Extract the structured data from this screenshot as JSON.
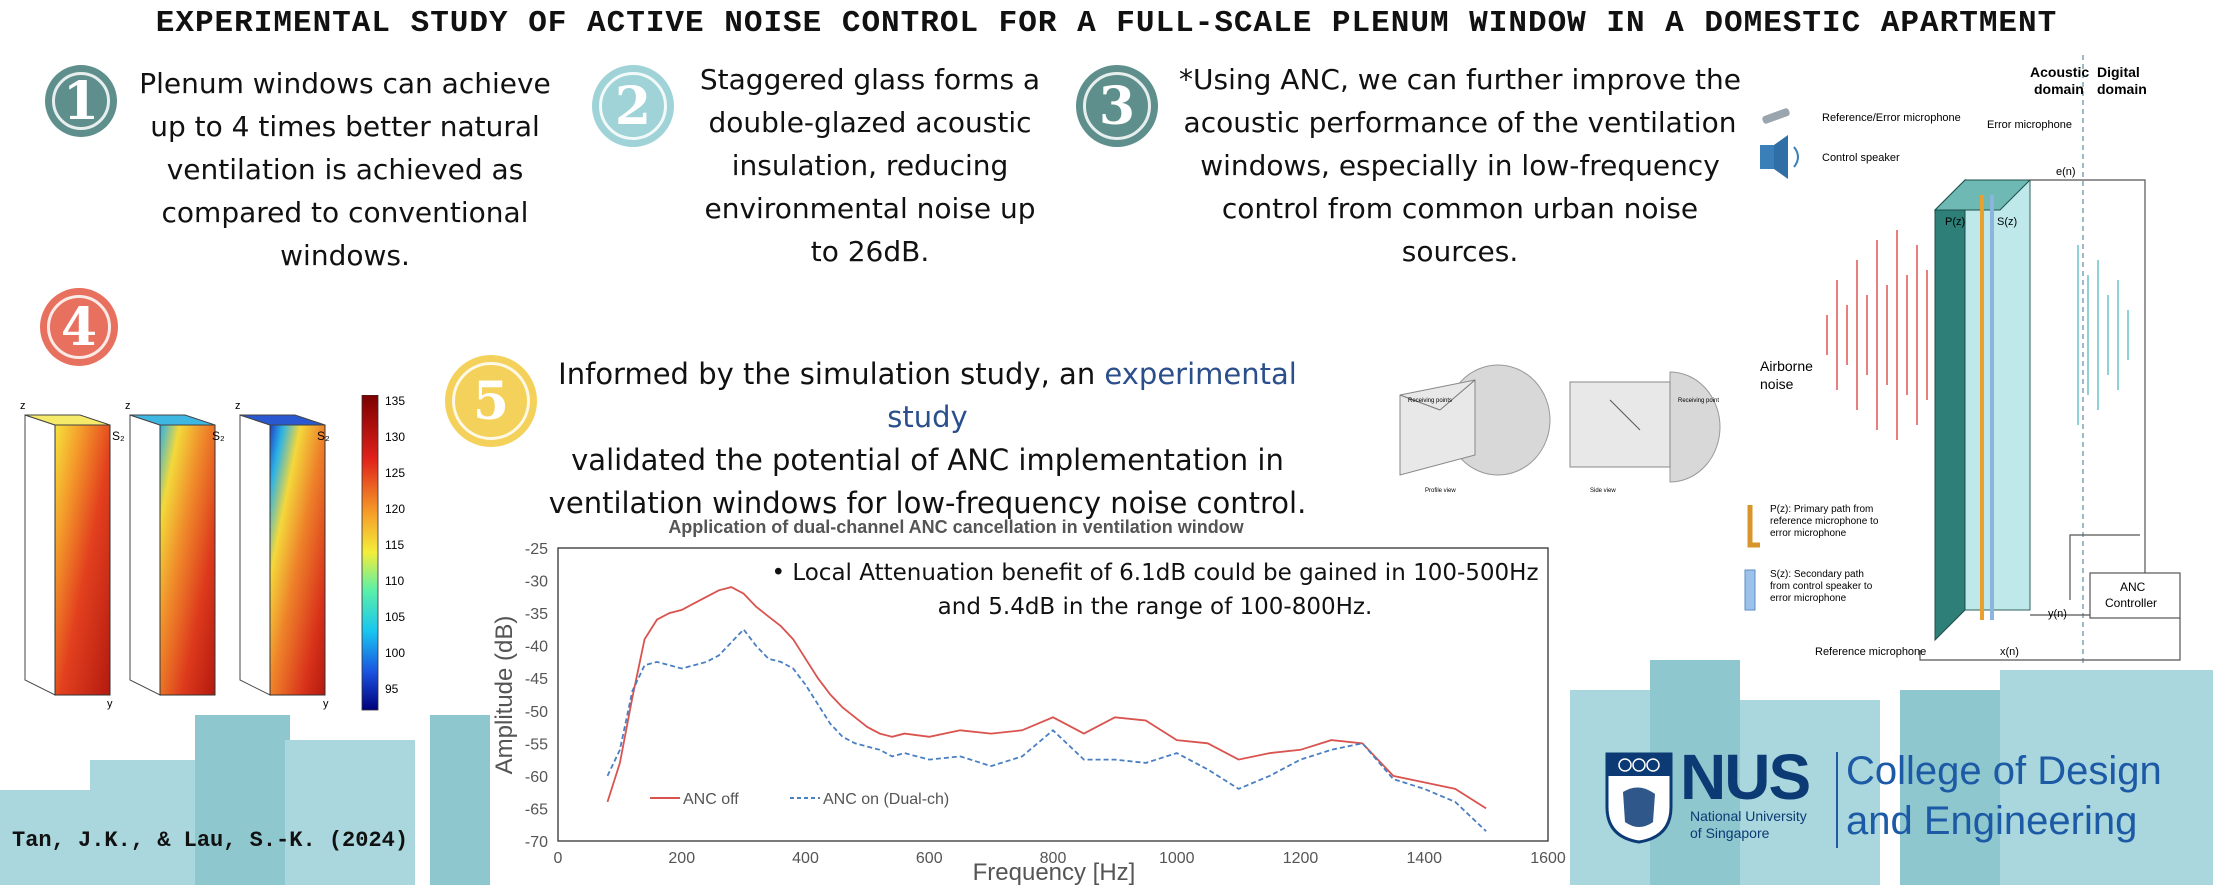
{
  "title": "EXPERIMENTAL STUDY OF ACTIVE NOISE CONTROL FOR A FULL-SCALE PLENUM WINDOW IN A DOMESTIC APARTMENT",
  "points": [
    {
      "number": "1",
      "color": "#5e8f8c",
      "lines": [
        "Plenum windows can achieve",
        "up to 4 times better natural",
        "ventilation is achieved as",
        "compared to conventional",
        "windows."
      ]
    },
    {
      "number": "2",
      "color": "#9fd3d8",
      "lines": [
        "Staggered glass forms a",
        "double-glazed acoustic",
        "insulation, reducing",
        "environmental noise up",
        "to 26dB."
      ]
    },
    {
      "number": "3",
      "color": "#5e8f8c",
      "lines": [
        "*Using ANC, we can further improve the",
        "acoustic performance of the ventilation",
        "windows, especially in low-frequency",
        "control from common urban noise",
        "sources."
      ]
    },
    {
      "number": "4",
      "color": "#e8705f"
    },
    {
      "number": "5",
      "color": "#f3d15a",
      "pre": "Informed by the simulation study, an ",
      "highlight": "experimental study",
      "lines": [
        "validated the potential of ANC implementation in",
        "ventilation windows for low-frequency noise control."
      ]
    }
  ],
  "heatmap": {
    "colorbar_ticks": [
      "135",
      "130",
      "125",
      "120",
      "115",
      "110",
      "105",
      "100",
      "95"
    ],
    "axis_z": "z",
    "axis_y": "y",
    "source_label": "S₂"
  },
  "simulation": {
    "profile_label": "Profile view",
    "side_label": "Side view",
    "receiving_points": "Receiving points",
    "receiving_point": "Receiving point"
  },
  "diagram": {
    "acoustic_domain": [
      "Acoustic",
      "domain"
    ],
    "digital_domain": [
      "Digital",
      "domain"
    ],
    "legend_ref_mic": "Reference/Error microphone",
    "legend_speaker": "Control speaker",
    "error_mic": "Error microphone",
    "en": "e(n)",
    "pz": "P(z)",
    "sz": "S(z)",
    "airborne": [
      "Airborne",
      "noise"
    ],
    "pz_desc": [
      "P(z): Primary path from",
      "reference microphone to",
      "error microphone"
    ],
    "sz_desc": [
      "S(z): Secondary path",
      "from control speaker to",
      "error microphone"
    ],
    "yn": "y(n)",
    "xn": "x(n)",
    "anc": [
      "ANC",
      "Controller"
    ],
    "ref_mic": "Reference microphone"
  },
  "chart_data": {
    "type": "line",
    "title": "Application of dual-channel ANC cancellation in ventilation window",
    "xlabel": "Frequency [Hz]",
    "ylabel": "Amplitude (dB)",
    "xlim": [
      0,
      1600
    ],
    "ylim": [
      -70,
      -25
    ],
    "xticks": [
      0,
      200,
      400,
      600,
      800,
      1000,
      1200,
      1400,
      1600
    ],
    "yticks": [
      -25,
      -30,
      -35,
      -40,
      -45,
      -50,
      -55,
      -60,
      -65,
      -70
    ],
    "legend_placement": "bottom-left",
    "grid": false,
    "series": [
      {
        "name": "ANC off",
        "color": "#d9534f",
        "style": "solid",
        "x": [
          80,
          100,
          120,
          140,
          160,
          180,
          200,
          220,
          240,
          260,
          280,
          300,
          320,
          340,
          360,
          380,
          400,
          420,
          440,
          460,
          480,
          500,
          520,
          540,
          560,
          600,
          650,
          700,
          750,
          800,
          850,
          900,
          950,
          1000,
          1050,
          1100,
          1150,
          1200,
          1250,
          1300,
          1350,
          1400,
          1450,
          1500
        ],
        "y": [
          -64,
          -58,
          -48,
          -39,
          -36,
          -35,
          -34.5,
          -33.5,
          -32.5,
          -31.5,
          -31,
          -32,
          -34,
          -35.5,
          -37,
          -39,
          -42,
          -45,
          -47.5,
          -49.5,
          -51,
          -52.5,
          -53.5,
          -54,
          -53.5,
          -54,
          -53,
          -53.5,
          -53,
          -51,
          -53.5,
          -51,
          -51.5,
          -54.5,
          -55,
          -57.5,
          -56.5,
          -56,
          -54.5,
          -55,
          -60,
          -61,
          -62,
          -65
        ]
      },
      {
        "name": "ANC on (Dual-ch)",
        "color": "#4a7fc1",
        "style": "dashed",
        "x": [
          80,
          100,
          120,
          140,
          160,
          180,
          200,
          220,
          240,
          260,
          280,
          300,
          320,
          340,
          360,
          380,
          400,
          420,
          440,
          460,
          480,
          500,
          520,
          540,
          560,
          600,
          650,
          700,
          750,
          800,
          850,
          900,
          950,
          1000,
          1050,
          1100,
          1150,
          1200,
          1250,
          1300,
          1350,
          1400,
          1450,
          1500
        ],
        "y": [
          -60,
          -56,
          -47,
          -43,
          -42.5,
          -43,
          -43.5,
          -43,
          -42.5,
          -41.5,
          -39.5,
          -37.5,
          -40,
          -42,
          -42.5,
          -43.5,
          -46,
          -49,
          -52,
          -54,
          -55,
          -55.5,
          -56,
          -57,
          -56.5,
          -57.5,
          -57,
          -58.5,
          -57,
          -53,
          -57.5,
          -57.5,
          -58,
          -56.5,
          -59,
          -62,
          -60,
          -57.5,
          -56,
          -55,
          -60.5,
          -62,
          -64,
          -68.5
        ]
      }
    ]
  },
  "bullet": [
    "Local Attenuation benefit of 6.1dB could be gained in 100-500Hz",
    "and 5.4dB in the range of 100-800Hz."
  ],
  "citation": "Tan, J.K., & Lau, S.-K. (2024)",
  "nus": {
    "word": "NUS",
    "sub": [
      "National University",
      "of Singapore"
    ],
    "college": [
      "College of Design",
      "and Engineering"
    ]
  }
}
